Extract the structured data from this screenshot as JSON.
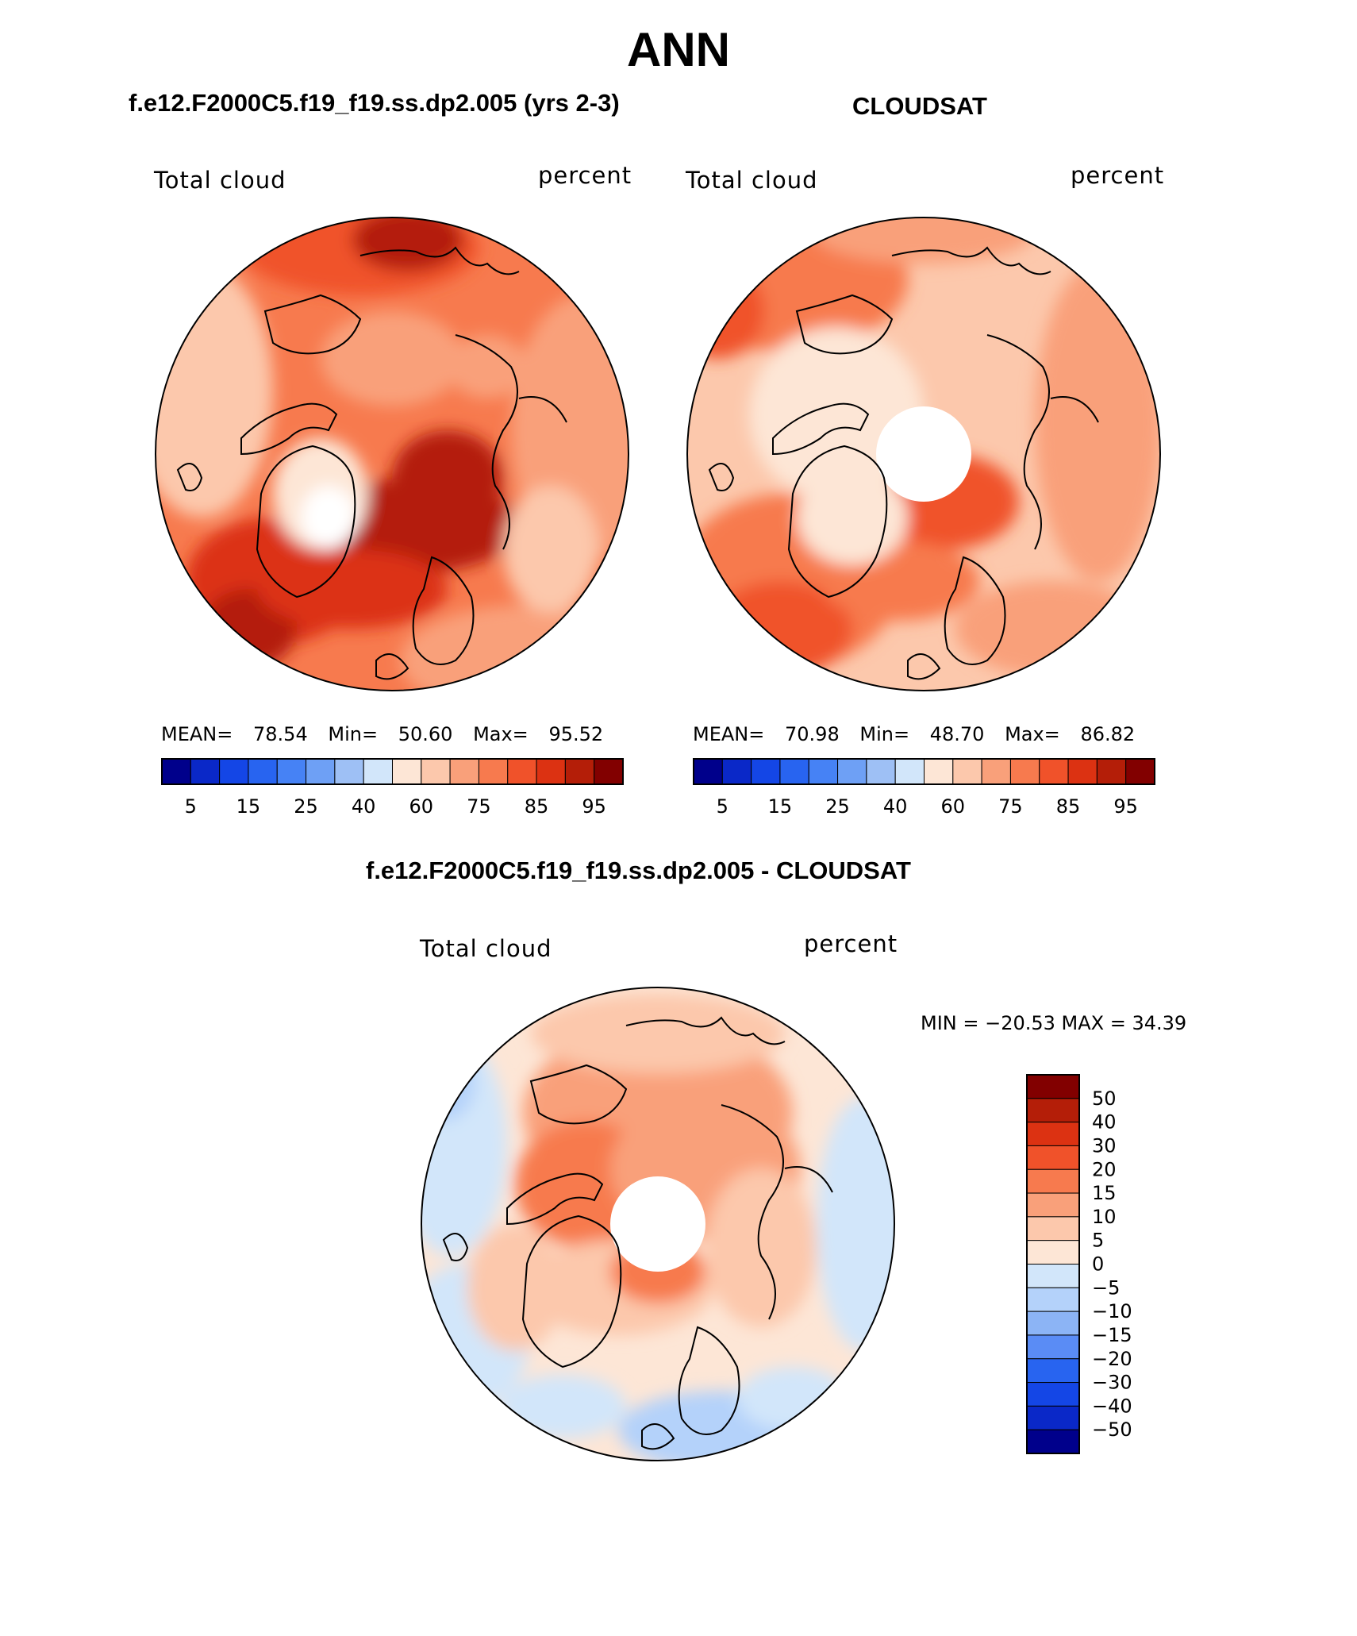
{
  "page": {
    "season": "ANN",
    "test_case_title": "f.e12.F2000C5.f19_f19.ss.dp2.005 (yrs 2-3)",
    "obs_title": "CLOUDSAT",
    "diff_title": "f.e12.F2000C5.f19_f19.ss.dp2.005 - CLOUDSAT"
  },
  "panels": {
    "model": {
      "variable": "Total cloud",
      "units": "percent",
      "mean_label": "MEAN=",
      "mean": "78.54",
      "min_label": "Min=",
      "min": "50.60",
      "max_label": "Max=",
      "max": "95.52"
    },
    "obs": {
      "variable": "Total cloud",
      "units": "percent",
      "mean_label": "MEAN=",
      "mean": "70.98",
      "min_label": "Min=",
      "min": "48.70",
      "max_label": "Max=",
      "max": "86.82"
    },
    "diff": {
      "variable": "Total cloud",
      "units": "percent",
      "minmax_text": "MIN = −20.53 MAX =  34.39"
    }
  },
  "colorbars": {
    "abs": {
      "colors": [
        "#00008b",
        "#0a28c8",
        "#1446e6",
        "#2864f0",
        "#4682f5",
        "#6ea0f5",
        "#9ec0f5",
        "#d2e6fa",
        "#fde6d6",
        "#fcc8ac",
        "#f9a07a",
        "#f77a4e",
        "#f0522a",
        "#dc3212",
        "#b41e08",
        "#820000"
      ],
      "labels": [
        "5",
        "15",
        "25",
        "40",
        "60",
        "75",
        "85",
        "95"
      ]
    },
    "diff": {
      "colors": [
        "#820000",
        "#b41e08",
        "#dc3212",
        "#f0522a",
        "#f77a4e",
        "#f9a07a",
        "#fcc8ac",
        "#fde6d6",
        "#d2e6fa",
        "#b4d2fa",
        "#8cb4f5",
        "#5a8cf5",
        "#2864f0",
        "#1446e6",
        "#0a28c8",
        "#00008b"
      ],
      "labels": [
        "50",
        "40",
        "30",
        "20",
        "15",
        "10",
        "5",
        "0",
        "−5",
        "−10",
        "−15",
        "−20",
        "−30",
        "−40",
        "−50"
      ]
    }
  },
  "colors": {
    "land_outline": "#000000",
    "missing": "#ffffff"
  }
}
